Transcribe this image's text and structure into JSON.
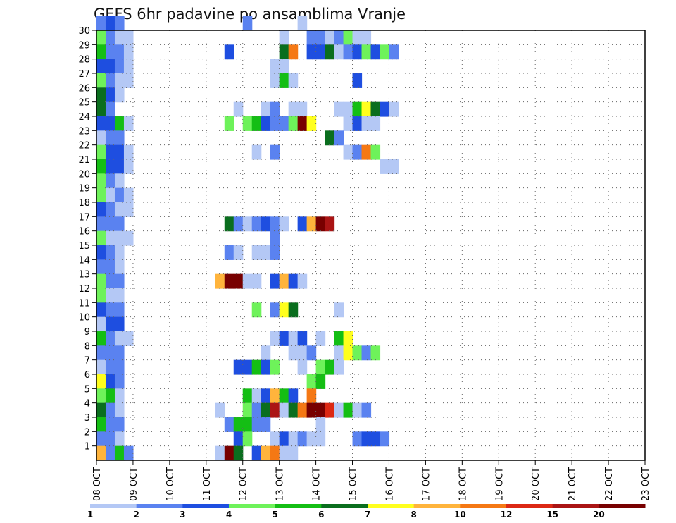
{
  "chart_data": {
    "type": "heatmap",
    "title": "GEFS 6hr padavine po ansamblima Vranje",
    "y_tick_labels": [
      "1",
      "2",
      "3",
      "4",
      "5",
      "6",
      "7",
      "8",
      "9",
      "10",
      "11",
      "12",
      "13",
      "14",
      "15",
      "16",
      "17",
      "18",
      "19",
      "20",
      "21",
      "22",
      "23",
      "24",
      "25",
      "26",
      "27",
      "28",
      "29",
      "30"
    ],
    "x_tick_labels": [
      "08 OCT",
      "09 OCT",
      "10 OCT",
      "11 OCT",
      "12 OCT",
      "13 OCT",
      "14 OCT",
      "15 OCT",
      "16 OCT",
      "17 OCT",
      "18 OCT",
      "19 OCT",
      "20 OCT",
      "21 OCT",
      "22 OCT",
      "23 OCT"
    ],
    "ylim": [
      0,
      30
    ],
    "xlim_days": [
      0,
      15
    ],
    "grid": true,
    "legend": {
      "placement": "bottom",
      "labels": [
        "1",
        "2",
        "3",
        "4",
        "5",
        "6",
        "7",
        "8",
        "10",
        "12",
        "15",
        "20"
      ],
      "colors": [
        "#b4c8f5",
        "#5a82f0",
        "#1e4ee0",
        "#6ef25a",
        "#14be14",
        "#0a6e1e",
        "#ffff1e",
        "#ffb43c",
        "#f57814",
        "#dc2814",
        "#aa1414",
        "#780000"
      ]
    },
    "cells": [
      [
        0,
        30,
        2
      ],
      [
        1,
        30,
        3
      ],
      [
        2,
        30,
        2
      ],
      [
        16,
        30,
        2
      ],
      [
        22,
        30,
        1
      ],
      [
        0,
        29,
        4
      ],
      [
        1,
        29,
        2
      ],
      [
        2,
        29,
        1
      ],
      [
        3,
        29,
        1
      ],
      [
        20,
        29,
        1
      ],
      [
        23,
        29,
        2
      ],
      [
        24,
        29,
        2
      ],
      [
        25,
        29,
        1
      ],
      [
        26,
        29,
        2
      ],
      [
        27,
        29,
        4
      ],
      [
        28,
        29,
        1
      ],
      [
        29,
        29,
        1
      ],
      [
        0,
        28,
        5
      ],
      [
        1,
        28,
        2
      ],
      [
        2,
        28,
        2
      ],
      [
        3,
        28,
        1
      ],
      [
        14,
        28,
        3
      ],
      [
        20,
        28,
        6
      ],
      [
        21,
        28,
        9
      ],
      [
        23,
        28,
        3
      ],
      [
        24,
        28,
        3
      ],
      [
        25,
        28,
        6
      ],
      [
        26,
        28,
        1
      ],
      [
        27,
        28,
        2
      ],
      [
        28,
        28,
        3
      ],
      [
        29,
        28,
        4
      ],
      [
        30,
        28,
        3
      ],
      [
        31,
        28,
        4
      ],
      [
        32,
        28,
        2
      ],
      [
        0,
        27,
        3
      ],
      [
        1,
        27,
        3
      ],
      [
        2,
        27,
        2
      ],
      [
        3,
        27,
        1
      ],
      [
        19,
        27,
        1
      ],
      [
        20,
        27,
        1
      ],
      [
        0,
        26,
        4
      ],
      [
        1,
        26,
        2
      ],
      [
        2,
        26,
        1
      ],
      [
        3,
        26,
        1
      ],
      [
        19,
        26,
        1
      ],
      [
        20,
        26,
        5
      ],
      [
        21,
        26,
        1
      ],
      [
        28,
        26,
        3
      ],
      [
        0,
        25,
        6
      ],
      [
        1,
        25,
        3
      ],
      [
        2,
        25,
        1
      ],
      [
        0,
        24,
        6
      ],
      [
        1,
        24,
        2
      ],
      [
        15,
        24,
        1
      ],
      [
        18,
        24,
        1
      ],
      [
        19,
        24,
        2
      ],
      [
        21,
        24,
        1
      ],
      [
        22,
        24,
        1
      ],
      [
        26,
        24,
        1
      ],
      [
        27,
        24,
        1
      ],
      [
        28,
        24,
        5
      ],
      [
        29,
        24,
        7
      ],
      [
        30,
        24,
        6
      ],
      [
        31,
        24,
        3
      ],
      [
        32,
        24,
        1
      ],
      [
        0,
        23,
        3
      ],
      [
        1,
        23,
        3
      ],
      [
        2,
        23,
        5
      ],
      [
        3,
        23,
        1
      ],
      [
        14,
        23,
        4
      ],
      [
        16,
        23,
        4
      ],
      [
        17,
        23,
        5
      ],
      [
        18,
        23,
        3
      ],
      [
        19,
        23,
        2
      ],
      [
        20,
        23,
        2
      ],
      [
        21,
        23,
        4
      ],
      [
        22,
        23,
        12
      ],
      [
        23,
        23,
        7
      ],
      [
        27,
        23,
        1
      ],
      [
        28,
        23,
        3
      ],
      [
        29,
        23,
        1
      ],
      [
        30,
        23,
        1
      ],
      [
        0,
        22,
        1
      ],
      [
        1,
        22,
        2
      ],
      [
        2,
        22,
        2
      ],
      [
        25,
        22,
        6
      ],
      [
        26,
        22,
        2
      ],
      [
        0,
        21,
        4
      ],
      [
        1,
        21,
        3
      ],
      [
        2,
        21,
        3
      ],
      [
        3,
        21,
        1
      ],
      [
        17,
        21,
        1
      ],
      [
        19,
        21,
        2
      ],
      [
        27,
        21,
        1
      ],
      [
        28,
        21,
        2
      ],
      [
        29,
        21,
        9
      ],
      [
        30,
        21,
        4
      ],
      [
        0,
        20,
        5
      ],
      [
        1,
        20,
        3
      ],
      [
        2,
        20,
        3
      ],
      [
        3,
        20,
        1
      ],
      [
        31,
        20,
        1
      ],
      [
        32,
        20,
        1
      ],
      [
        0,
        19,
        4
      ],
      [
        1,
        19,
        2
      ],
      [
        2,
        19,
        1
      ],
      [
        0,
        18,
        4
      ],
      [
        1,
        18,
        1
      ],
      [
        2,
        18,
        2
      ],
      [
        3,
        18,
        1
      ],
      [
        0,
        17,
        3
      ],
      [
        1,
        17,
        2
      ],
      [
        2,
        17,
        1
      ],
      [
        3,
        17,
        1
      ],
      [
        0,
        16,
        2
      ],
      [
        1,
        16,
        2
      ],
      [
        2,
        16,
        2
      ],
      [
        14,
        16,
        6
      ],
      [
        15,
        16,
        2
      ],
      [
        16,
        16,
        1
      ],
      [
        17,
        16,
        2
      ],
      [
        18,
        16,
        3
      ],
      [
        19,
        16,
        2
      ],
      [
        20,
        16,
        1
      ],
      [
        22,
        16,
        3
      ],
      [
        23,
        16,
        8
      ],
      [
        24,
        16,
        12
      ],
      [
        25,
        16,
        11
      ],
      [
        0,
        15,
        4
      ],
      [
        1,
        15,
        1
      ],
      [
        2,
        15,
        1
      ],
      [
        3,
        15,
        1
      ],
      [
        19,
        15,
        2
      ],
      [
        0,
        14,
        3
      ],
      [
        1,
        14,
        2
      ],
      [
        2,
        14,
        1
      ],
      [
        14,
        14,
        2
      ],
      [
        15,
        14,
        1
      ],
      [
        17,
        14,
        1
      ],
      [
        18,
        14,
        1
      ],
      [
        19,
        14,
        2
      ],
      [
        0,
        13,
        2
      ],
      [
        1,
        13,
        2
      ],
      [
        2,
        13,
        1
      ],
      [
        0,
        12,
        4
      ],
      [
        1,
        12,
        2
      ],
      [
        2,
        12,
        2
      ],
      [
        13,
        12,
        8
      ],
      [
        14,
        12,
        12
      ],
      [
        15,
        12,
        12
      ],
      [
        16,
        12,
        1
      ],
      [
        17,
        12,
        1
      ],
      [
        19,
        12,
        3
      ],
      [
        20,
        12,
        8
      ],
      [
        21,
        12,
        3
      ],
      [
        22,
        12,
        1
      ],
      [
        0,
        11,
        4
      ],
      [
        1,
        11,
        1
      ],
      [
        2,
        11,
        1
      ],
      [
        0,
        10,
        3
      ],
      [
        1,
        10,
        2
      ],
      [
        2,
        10,
        2
      ],
      [
        17,
        10,
        4
      ],
      [
        19,
        10,
        2
      ],
      [
        20,
        10,
        7
      ],
      [
        21,
        10,
        6
      ],
      [
        26,
        10,
        1
      ],
      [
        0,
        9,
        1
      ],
      [
        1,
        9,
        3
      ],
      [
        2,
        9,
        3
      ],
      [
        0,
        8,
        5
      ],
      [
        1,
        8,
        2
      ],
      [
        2,
        8,
        1
      ],
      [
        3,
        8,
        1
      ],
      [
        19,
        8,
        1
      ],
      [
        20,
        8,
        3
      ],
      [
        21,
        8,
        1
      ],
      [
        22,
        8,
        3
      ],
      [
        24,
        8,
        1
      ],
      [
        26,
        8,
        5
      ],
      [
        27,
        8,
        7
      ],
      [
        0,
        7,
        2
      ],
      [
        1,
        7,
        2
      ],
      [
        2,
        7,
        2
      ],
      [
        18,
        7,
        1
      ],
      [
        21,
        7,
        1
      ],
      [
        22,
        7,
        1
      ],
      [
        23,
        7,
        2
      ],
      [
        26,
        7,
        1
      ],
      [
        27,
        7,
        7
      ],
      [
        28,
        7,
        4
      ],
      [
        29,
        7,
        2
      ],
      [
        30,
        7,
        4
      ],
      [
        0,
        6,
        1
      ],
      [
        1,
        6,
        2
      ],
      [
        2,
        6,
        2
      ],
      [
        15,
        6,
        3
      ],
      [
        16,
        6,
        3
      ],
      [
        17,
        6,
        5
      ],
      [
        18,
        6,
        3
      ],
      [
        19,
        6,
        4
      ],
      [
        22,
        6,
        1
      ],
      [
        24,
        6,
        4
      ],
      [
        25,
        6,
        5
      ],
      [
        26,
        6,
        1
      ],
      [
        0,
        5,
        7
      ],
      [
        1,
        5,
        3
      ],
      [
        2,
        5,
        2
      ],
      [
        23,
        5,
        4
      ],
      [
        24,
        5,
        5
      ],
      [
        0,
        4,
        4
      ],
      [
        1,
        4,
        5
      ],
      [
        2,
        4,
        1
      ],
      [
        16,
        4,
        5
      ],
      [
        17,
        4,
        1
      ],
      [
        18,
        4,
        3
      ],
      [
        19,
        4,
        8
      ],
      [
        20,
        4,
        5
      ],
      [
        21,
        4,
        3
      ],
      [
        23,
        4,
        9
      ],
      [
        0,
        3,
        6
      ],
      [
        1,
        3,
        2
      ],
      [
        2,
        3,
        1
      ],
      [
        13,
        3,
        1
      ],
      [
        16,
        3,
        4
      ],
      [
        17,
        3,
        2
      ],
      [
        18,
        3,
        6
      ],
      [
        19,
        3,
        11
      ],
      [
        20,
        3,
        1
      ],
      [
        21,
        3,
        6
      ],
      [
        22,
        3,
        9
      ],
      [
        23,
        3,
        12
      ],
      [
        24,
        3,
        12
      ],
      [
        25,
        3,
        10
      ],
      [
        26,
        3,
        1
      ],
      [
        27,
        3,
        5
      ],
      [
        28,
        3,
        1
      ],
      [
        29,
        3,
        2
      ],
      [
        0,
        2,
        5
      ],
      [
        1,
        2,
        2
      ],
      [
        2,
        2,
        2
      ],
      [
        14,
        2,
        2
      ],
      [
        15,
        2,
        5
      ],
      [
        16,
        2,
        5
      ],
      [
        17,
        2,
        2
      ],
      [
        18,
        2,
        2
      ],
      [
        24,
        2,
        1
      ],
      [
        0,
        1,
        2
      ],
      [
        1,
        1,
        2
      ],
      [
        2,
        1,
        1
      ],
      [
        15,
        1,
        3
      ],
      [
        16,
        1,
        4
      ],
      [
        19,
        1,
        1
      ],
      [
        20,
        1,
        3
      ],
      [
        21,
        1,
        1
      ],
      [
        22,
        1,
        2
      ],
      [
        23,
        1,
        1
      ],
      [
        24,
        1,
        1
      ],
      [
        28,
        1,
        2
      ],
      [
        29,
        1,
        3
      ],
      [
        30,
        1,
        3
      ],
      [
        31,
        1,
        2
      ],
      [
        0,
        0,
        8
      ],
      [
        1,
        0,
        2
      ],
      [
        2,
        0,
        5
      ],
      [
        3,
        0,
        2
      ],
      [
        13,
        0,
        1
      ],
      [
        14,
        0,
        12
      ],
      [
        15,
        0,
        6
      ],
      [
        17,
        0,
        3
      ],
      [
        18,
        0,
        8
      ],
      [
        19,
        0,
        9
      ],
      [
        20,
        0,
        1
      ],
      [
        21,
        0,
        1
      ]
    ]
  }
}
